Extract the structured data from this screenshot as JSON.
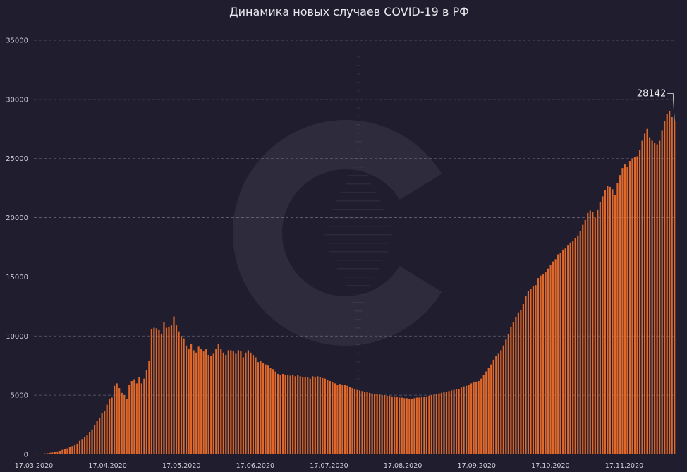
{
  "chart_data": {
    "type": "bar",
    "title": "Динамика новых случаев COVID-19 в РФ",
    "xlabel": "",
    "ylabel": "",
    "ylim": [
      0,
      35000
    ],
    "y_ticks": [
      0,
      5000,
      10000,
      15000,
      20000,
      25000,
      30000,
      35000
    ],
    "x_ticks": [
      "17.03.2020",
      "17.04.2020",
      "17.05.2020",
      "17.06.2020",
      "17.07.2020",
      "17.08.2020",
      "17.09.2020",
      "17.10.2020",
      "17.11.2020"
    ],
    "grid": true,
    "legend": "none",
    "bar_color": "#e0682a",
    "start_date": "17.03.2020",
    "annotation": {
      "label": "28142",
      "value": 28142
    },
    "values": [
      20,
      30,
      40,
      60,
      80,
      100,
      130,
      160,
      200,
      250,
      300,
      380,
      450,
      500,
      600,
      700,
      770,
      900,
      1150,
      1300,
      1450,
      1600,
      1900,
      2100,
      2500,
      2800,
      3100,
      3500,
      3700,
      4200,
      4700,
      4800,
      5800,
      6000,
      5600,
      5200,
      5000,
      4700,
      5850,
      6200,
      6350,
      6000,
      6500,
      6000,
      6400,
      7100,
      7900,
      10600,
      10700,
      10650,
      10500,
      10200,
      11200,
      10700,
      10800,
      10900,
      11650,
      10900,
      10400,
      10000,
      9800,
      9200,
      8900,
      9300,
      8800,
      8600,
      9100,
      8900,
      8700,
      8900,
      8400,
      8300,
      8500,
      8900,
      9300,
      8900,
      8600,
      8400,
      8800,
      8800,
      8700,
      8500,
      8800,
      8700,
      8200,
      8600,
      8800,
      8600,
      8400,
      8200,
      7800,
      7900,
      7700,
      7600,
      7500,
      7300,
      7200,
      7000,
      6800,
      6700,
      6800,
      6700,
      6700,
      6650,
      6700,
      6600,
      6700,
      6600,
      6500,
      6550,
      6500,
      6400,
      6600,
      6500,
      6600,
      6500,
      6450,
      6400,
      6300,
      6200,
      6100,
      6000,
      5900,
      5950,
      5900,
      5850,
      5800,
      5700,
      5600,
      5500,
      5450,
      5400,
      5350,
      5300,
      5250,
      5200,
      5150,
      5100,
      5100,
      5050,
      5000,
      5000,
      4950,
      4950,
      4900,
      4900,
      4850,
      4800,
      4800,
      4750,
      4750,
      4700,
      4700,
      4750,
      4800,
      4800,
      4850,
      4850,
      4900,
      4950,
      5000,
      5050,
      5100,
      5150,
      5200,
      5250,
      5300,
      5350,
      5400,
      5450,
      5500,
      5550,
      5650,
      5750,
      5800,
      5900,
      6000,
      6100,
      6150,
      6200,
      6400,
      6700,
      7000,
      7300,
      7600,
      8000,
      8300,
      8500,
      8800,
      9200,
      9700,
      10200,
      10800,
      11200,
      11600,
      12000,
      12200,
      12700,
      13400,
      13800,
      14000,
      14200,
      14300,
      14900,
      15100,
      15200,
      15400,
      15700,
      16000,
      16300,
      16500,
      16900,
      17000,
      17300,
      17400,
      17700,
      17900,
      18000,
      18300,
      18500,
      18900,
      19400,
      19800,
      20400,
      20600,
      20500,
      20000,
      20700,
      21300,
      21800,
      22300,
      22700,
      22600,
      22400,
      21900,
      22900,
      23600,
      24200,
      24500,
      24300,
      24800,
      25000,
      25100,
      25200,
      25700,
      26500,
      27100,
      27500,
      26800,
      26500,
      26300,
      26200,
      26500,
      27400,
      28200,
      28800,
      29000,
      28500,
      28142
    ]
  }
}
